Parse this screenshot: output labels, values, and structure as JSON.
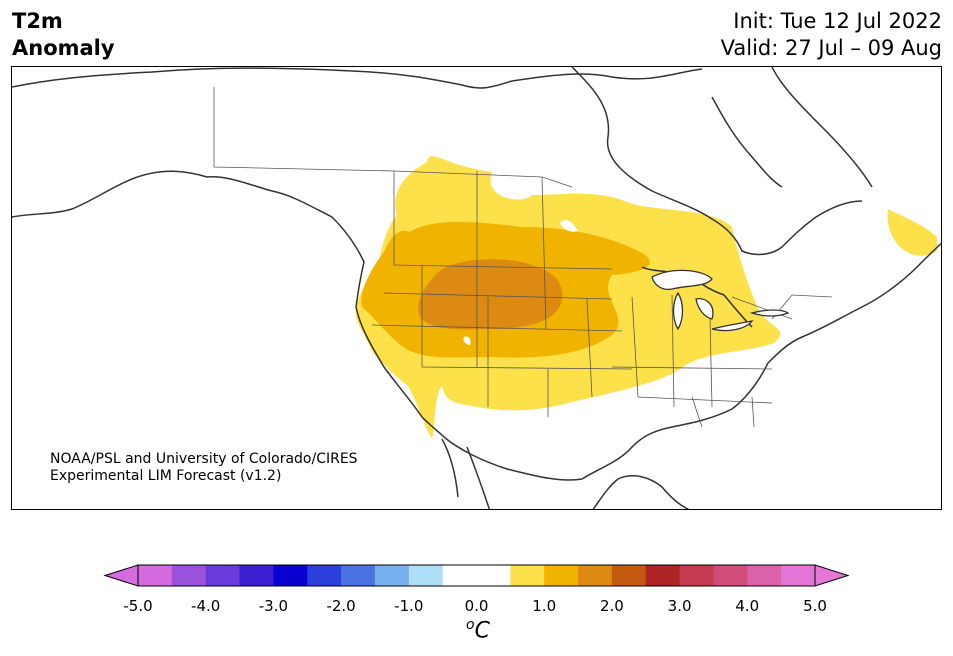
{
  "header": {
    "variable": "T2m",
    "metric": "Anomaly",
    "init": "Init: Tue 12 Jul 2022",
    "valid": "Valid: 27 Jul – 09 Aug"
  },
  "credit": {
    "line1": "NOAA/PSL and University of Colorado/CIRES",
    "line2": "Experimental LIM Forecast (v1.2)"
  },
  "colorbar": {
    "unit_symbol": "o",
    "unit_letter": "C",
    "ticks": [
      "-5.0",
      "-4.0",
      "-3.0",
      "-2.0",
      "-1.0",
      "0.0",
      "1.0",
      "2.0",
      "3.0",
      "4.0",
      "5.0"
    ],
    "colors": [
      "#d46ce0",
      "#9a52dc",
      "#6a3adb",
      "#3c1fd2",
      "#0a00d0",
      "#2a3fdc",
      "#4a74e4",
      "#79b0ee",
      "#aedef8",
      "#ffffff",
      "#ffffff",
      "#fde14a",
      "#f0b400",
      "#dc8a12",
      "#c45a10",
      "#ad2424",
      "#c43a4e",
      "#d04c7a",
      "#da62a8",
      "#e476d8"
    ]
  },
  "colors": {
    "anomaly_0_5": "#fde14a",
    "anomaly_1_0": "#f0b400",
    "anomaly_1_5": "#dc8a12",
    "coastline": "#333333"
  }
}
